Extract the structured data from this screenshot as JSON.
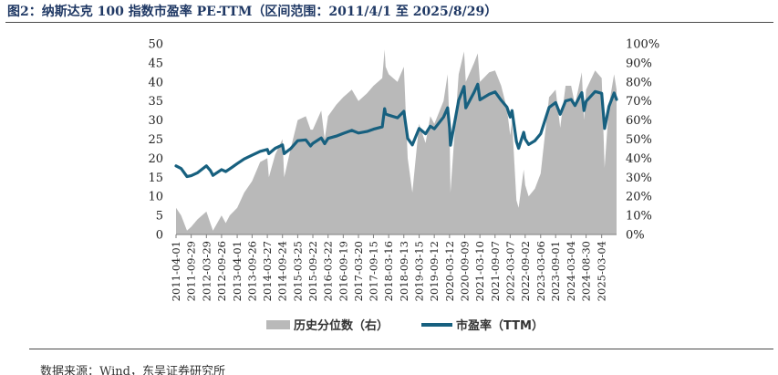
{
  "figure": {
    "title": "图2：纳斯达克 100 指数市盈率 PE-TTM（区间范围：2011/4/1 至 2025/8/29）",
    "source": "数据来源：Wind，东吴证券研究所"
  },
  "chart_data": {
    "type": "line",
    "y_left": {
      "min": 0,
      "max": 50,
      "ticks": [
        "0",
        "5",
        "10",
        "15",
        "20",
        "25",
        "30",
        "35",
        "40",
        "45",
        "50"
      ]
    },
    "y_right": {
      "min": 0,
      "max": 100,
      "ticks": [
        "0%",
        "10%",
        "20%",
        "30%",
        "40%",
        "50%",
        "60%",
        "70%",
        "80%",
        "90%",
        "100%"
      ]
    },
    "x_range": [
      "2011-04-01",
      "2025-08-29"
    ],
    "x_ticks": [
      "2011-04-01",
      "2011-09-29",
      "2012-03-29",
      "2012-09-26",
      "2013-04-01",
      "2013-09-26",
      "2014-03-27",
      "2014-09-24",
      "2015-03-25",
      "2015-09-22",
      "2016-03-22",
      "2016-09-19",
      "2017-03-20",
      "2017-09-15",
      "2018-03-16",
      "2018-09-13",
      "2019-03-15",
      "2019-09-12",
      "2020-03-12",
      "2020-09-09",
      "2021-03-10",
      "2021-09-07",
      "2022-03-07",
      "2022-09-02",
      "2023-03-06",
      "2023-09-01",
      "2024-03-04",
      "2024-08-30",
      "2025-03-04"
    ],
    "legend": {
      "position": "bottom",
      "items": [
        "历史分位数（右）",
        "市盈率（TTM）"
      ]
    },
    "colors": {
      "percentile_area": "#b9b9b9",
      "pe_line": "#17607f"
    },
    "series": [
      {
        "name": "市盈率（TTM）",
        "axis": "left",
        "style": "line",
        "x": [
          "2011-04-01",
          "2011-06-01",
          "2011-08-10",
          "2011-09-29",
          "2011-12-15",
          "2012-03-29",
          "2012-05-15",
          "2012-06-15",
          "2012-09-26",
          "2012-11-15",
          "2013-01-02",
          "2013-04-01",
          "2013-06-24",
          "2013-09-26",
          "2013-12-31",
          "2014-03-27",
          "2014-04-15",
          "2014-06-30",
          "2014-09-24",
          "2014-10-15",
          "2014-12-31",
          "2015-03-25",
          "2015-06-30",
          "2015-08-25",
          "2015-09-22",
          "2015-12-31",
          "2016-02-11",
          "2016-03-22",
          "2016-06-27",
          "2016-09-19",
          "2016-12-30",
          "2017-03-20",
          "2017-06-30",
          "2017-09-15",
          "2017-12-29",
          "2018-01-26",
          "2018-02-08",
          "2018-03-16",
          "2018-06-29",
          "2018-09-13",
          "2018-10-29",
          "2018-12-24",
          "2019-03-15",
          "2019-05-31",
          "2019-07-26",
          "2019-09-12",
          "2019-12-31",
          "2020-02-19",
          "2020-03-12",
          "2020-03-23",
          "2020-06-30",
          "2020-09-02",
          "2020-09-23",
          "2020-12-31",
          "2021-02-12",
          "2021-03-10",
          "2021-06-30",
          "2021-09-07",
          "2021-11-19",
          "2022-01-27",
          "2022-03-07",
          "2022-03-29",
          "2022-05-20",
          "2022-06-16",
          "2022-08-16",
          "2022-09-02",
          "2022-10-13",
          "2022-12-28",
          "2023-03-06",
          "2023-06-15",
          "2023-09-01",
          "2023-10-26",
          "2023-12-29",
          "2024-03-04",
          "2024-04-19",
          "2024-07-10",
          "2024-08-05",
          "2024-08-30",
          "2024-12-16",
          "2025-03-04",
          "2025-04-08",
          "2025-05-30",
          "2025-07-31",
          "2025-08-29"
        ],
        "y": [
          18,
          17.3,
          15.2,
          15.4,
          16.2,
          18,
          16.8,
          15.5,
          17,
          16.5,
          17.2,
          18.6,
          19.8,
          20.8,
          21.8,
          22.3,
          21.2,
          22.6,
          23.5,
          21.2,
          22.5,
          24.6,
          24.8,
          23.2,
          23.9,
          25.3,
          23.8,
          25.2,
          25.8,
          26.5,
          27.3,
          26.6,
          27,
          27.6,
          28.2,
          33,
          31.6,
          31.3,
          30.6,
          32.3,
          25.2,
          23.5,
          27.8,
          26.4,
          28.4,
          27.7,
          30.8,
          33.2,
          28,
          23.4,
          35.2,
          38.8,
          33.2,
          37.3,
          39.4,
          35.3,
          36.8,
          37.4,
          35.2,
          33.4,
          30.8,
          32.5,
          24.4,
          22.6,
          26.8,
          25,
          23.6,
          24.6,
          26.4,
          33.3,
          34.6,
          31.5,
          35,
          35.4,
          33.8,
          37.2,
          32.5,
          34.9,
          37.5,
          37,
          27.8,
          33.6,
          37.1,
          35.4
        ]
      },
      {
        "name": "历史分位数（右）",
        "axis": "right",
        "style": "area",
        "x": [
          "2011-04-01",
          "2011-06-01",
          "2011-08-10",
          "2011-09-29",
          "2011-12-15",
          "2012-03-29",
          "2012-05-15",
          "2012-06-15",
          "2012-09-26",
          "2012-11-15",
          "2013-01-02",
          "2013-04-01",
          "2013-06-24",
          "2013-09-26",
          "2013-12-31",
          "2014-03-27",
          "2014-04-15",
          "2014-06-30",
          "2014-09-24",
          "2014-10-15",
          "2014-12-31",
          "2015-03-25",
          "2015-06-30",
          "2015-08-25",
          "2015-09-22",
          "2015-12-31",
          "2016-02-11",
          "2016-03-22",
          "2016-06-27",
          "2016-09-19",
          "2016-12-30",
          "2017-03-20",
          "2017-06-30",
          "2017-09-15",
          "2017-12-29",
          "2018-01-26",
          "2018-02-08",
          "2018-03-16",
          "2018-06-29",
          "2018-09-13",
          "2018-10-29",
          "2018-12-24",
          "2019-03-15",
          "2019-05-31",
          "2019-07-26",
          "2019-09-12",
          "2019-12-31",
          "2020-02-19",
          "2020-03-12",
          "2020-03-23",
          "2020-06-30",
          "2020-09-02",
          "2020-09-23",
          "2020-12-31",
          "2021-02-12",
          "2021-03-10",
          "2021-06-30",
          "2021-09-07",
          "2021-11-19",
          "2022-01-27",
          "2022-03-07",
          "2022-03-29",
          "2022-05-20",
          "2022-06-16",
          "2022-08-16",
          "2022-09-02",
          "2022-10-13",
          "2022-12-28",
          "2023-03-06",
          "2023-06-15",
          "2023-09-01",
          "2023-10-26",
          "2023-12-29",
          "2024-03-04",
          "2024-04-19",
          "2024-07-10",
          "2024-08-05",
          "2024-08-30",
          "2024-12-16",
          "2025-03-04",
          "2025-04-08",
          "2025-05-30",
          "2025-07-31",
          "2025-08-29"
        ],
        "y": [
          14,
          10,
          2,
          4,
          8,
          12,
          6,
          2,
          10,
          6,
          10,
          14,
          22,
          28,
          38,
          40,
          30,
          42,
          50,
          30,
          45,
          60,
          62,
          55,
          55,
          65,
          50,
          62,
          68,
          72,
          76,
          70,
          74,
          78,
          82,
          97,
          88,
          84,
          80,
          88,
          40,
          22,
          58,
          48,
          62,
          58,
          70,
          84,
          55,
          22,
          84,
          96,
          80,
          90,
          95,
          80,
          85,
          86,
          78,
          66,
          52,
          60,
          18,
          14,
          34,
          26,
          20,
          24,
          32,
          72,
          76,
          56,
          78,
          78,
          68,
          85,
          60,
          76,
          86,
          82,
          35,
          68,
          84,
          76
        ]
      }
    ]
  }
}
